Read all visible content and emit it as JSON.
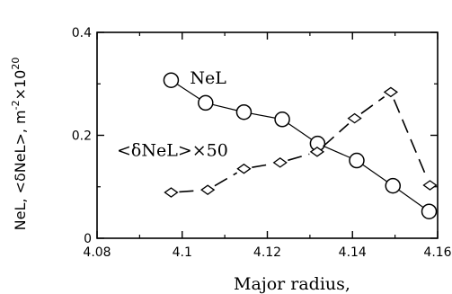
{
  "chart_data": {
    "type": "line",
    "xlabel": "Major radius,",
    "ylabel_main": "NeL,  <δNeL>,  m",
    "ylabel_sup1": "-2",
    "ylabel_mid": "×10",
    "ylabel_sup2": "20",
    "xlim": [
      4.08,
      4.16
    ],
    "ylim": [
      0,
      0.4
    ],
    "x_ticks": [
      {
        "value": 4.08,
        "label": "4.08"
      },
      {
        "value": 4.1,
        "label": "4.1"
      },
      {
        "value": 4.12,
        "label": "4.12"
      },
      {
        "value": 4.14,
        "label": "4.14"
      },
      {
        "value": 4.16,
        "label": "4.16"
      }
    ],
    "y_ticks": [
      {
        "value": 0,
        "label": "0"
      },
      {
        "value": 0.2,
        "label": "0.2"
      },
      {
        "value": 0.4,
        "label": "0.4"
      }
    ],
    "series": [
      {
        "name": "NeL",
        "marker": "circle",
        "line": "solid",
        "x": [
          4.0974,
          4.1055,
          4.1145,
          4.1235,
          4.1318,
          4.141,
          4.1495,
          4.158
        ],
        "y": [
          0.307,
          0.263,
          0.245,
          0.231,
          0.184,
          0.151,
          0.102,
          0.052
        ]
      },
      {
        "name": "<δNeL>×50",
        "marker": "diamond",
        "line": "dashed",
        "x": [
          4.0974,
          4.106,
          4.1145,
          4.123,
          4.1317,
          4.1405,
          4.149,
          4.1582
        ],
        "y": [
          0.089,
          0.094,
          0.135,
          0.147,
          0.168,
          0.233,
          0.284,
          0.103
        ]
      }
    ],
    "annotations": [
      {
        "text": "NeL",
        "series": 0
      },
      {
        "text": "<δNeL>×50",
        "series": 1
      }
    ],
    "grid": false
  }
}
